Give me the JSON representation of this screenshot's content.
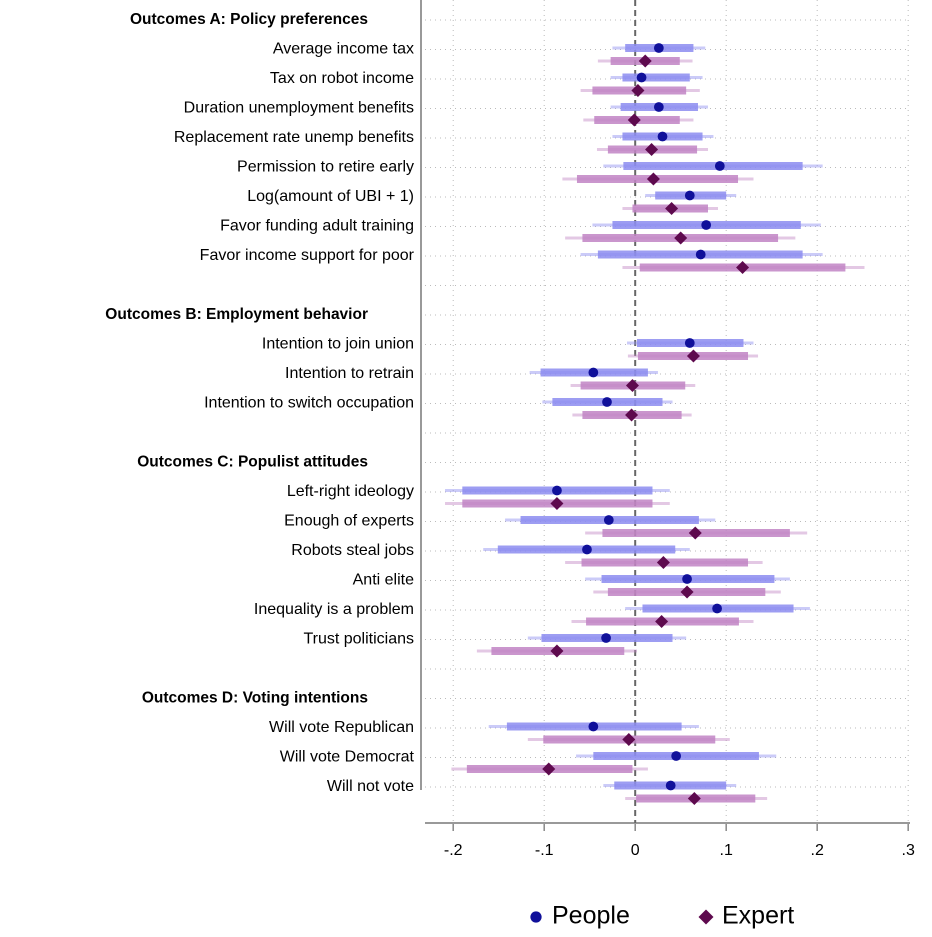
{
  "chart_data": {
    "type": "coefplot",
    "groups": [
      {
        "title": "Outcomes A: Policy preferences",
        "categories": [
          "Average income tax",
          "Tax on robot income",
          "Duration unemployment benefits",
          "Replacement rate unemp benefits",
          "Permission to retire early",
          "Log(amount of UBI + 1)",
          "Favor funding adult training",
          "Favor income support for poor"
        ]
      },
      {
        "title": "Outcomes B: Employment behavior",
        "categories": [
          "Intention to join union",
          "Intention to retrain",
          "Intention to switch occupation"
        ]
      },
      {
        "title": "Outcomes C: Populist attitudes",
        "categories": [
          "Left-right ideology",
          "Enough of experts",
          "Robots steal jobs",
          "Anti elite",
          "Inequality is a problem",
          "Trust politicians"
        ]
      },
      {
        "title": "Outcomes D: Voting intentions",
        "categories": [
          "Will vote Republican",
          "Will vote Democrat",
          "Will not vote"
        ]
      }
    ],
    "series": [
      {
        "name": "People",
        "color": "#10109a",
        "ci_color": "#8c8cf0",
        "marker": "circle",
        "values": [
          0.026,
          0.007,
          0.026,
          0.03,
          0.093,
          0.06,
          0.078,
          0.072,
          0.06,
          -0.046,
          -0.031,
          -0.086,
          -0.029,
          -0.053,
          0.057,
          0.09,
          -0.032,
          -0.046,
          0.045,
          0.039
        ],
        "ci90": [
          [
            -0.011,
            0.064
          ],
          [
            -0.014,
            0.06
          ],
          [
            -0.016,
            0.069
          ],
          [
            -0.014,
            0.074
          ],
          [
            -0.013,
            0.184
          ],
          [
            0.022,
            0.1
          ],
          [
            -0.025,
            0.182
          ],
          [
            -0.041,
            0.184
          ],
          [
            0.002,
            0.119
          ],
          [
            -0.104,
            0.014
          ],
          [
            -0.091,
            0.03
          ],
          [
            -0.19,
            0.019
          ],
          [
            -0.126,
            0.07
          ],
          [
            -0.151,
            0.044
          ],
          [
            -0.037,
            0.153
          ],
          [
            0.008,
            0.174
          ],
          [
            -0.103,
            0.041
          ],
          [
            -0.141,
            0.051
          ],
          [
            -0.046,
            0.136
          ],
          [
            -0.023,
            0.1
          ]
        ],
        "ci95": [
          [
            -0.025,
            0.077
          ],
          [
            -0.027,
            0.074
          ],
          [
            -0.027,
            0.08
          ],
          [
            -0.025,
            0.086
          ],
          [
            -0.035,
            0.206
          ],
          [
            0.011,
            0.111
          ],
          [
            -0.047,
            0.204
          ],
          [
            -0.06,
            0.206
          ],
          [
            -0.009,
            0.13
          ],
          [
            -0.116,
            0.025
          ],
          [
            -0.102,
            0.041
          ],
          [
            -0.209,
            0.038
          ],
          [
            -0.143,
            0.088
          ],
          [
            -0.167,
            0.06
          ],
          [
            -0.055,
            0.17
          ],
          [
            -0.011,
            0.192
          ],
          [
            -0.118,
            0.056
          ],
          [
            -0.161,
            0.07
          ],
          [
            -0.065,
            0.155
          ],
          [
            -0.035,
            0.111
          ]
        ]
      },
      {
        "name": "Expert",
        "color": "#5e0a4e",
        "ci_color": "#c184c4",
        "marker": "diamond",
        "values": [
          0.011,
          0.003,
          -0.001,
          0.018,
          0.02,
          0.04,
          0.05,
          0.118,
          0.064,
          -0.003,
          -0.004,
          -0.086,
          0.066,
          0.031,
          0.057,
          0.029,
          -0.086,
          -0.007,
          -0.095,
          0.065
        ],
        "ci90": [
          [
            -0.027,
            0.049
          ],
          [
            -0.047,
            0.056
          ],
          [
            -0.045,
            0.049
          ],
          [
            -0.03,
            0.068
          ],
          [
            -0.064,
            0.113
          ],
          [
            -0.003,
            0.08
          ],
          [
            -0.058,
            0.157
          ],
          [
            0.005,
            0.231
          ],
          [
            0.003,
            0.124
          ],
          [
            -0.06,
            0.055
          ],
          [
            -0.058,
            0.051
          ],
          [
            -0.19,
            0.019
          ],
          [
            -0.036,
            0.17
          ],
          [
            -0.059,
            0.124
          ],
          [
            -0.03,
            0.143
          ],
          [
            -0.054,
            0.114
          ],
          [
            -0.158,
            -0.012
          ],
          [
            -0.101,
            0.088
          ],
          [
            -0.185,
            -0.003
          ],
          [
            0.001,
            0.132
          ]
        ],
        "ci95": [
          [
            -0.041,
            0.063
          ],
          [
            -0.06,
            0.071
          ],
          [
            -0.057,
            0.064
          ],
          [
            -0.042,
            0.08
          ],
          [
            -0.08,
            0.13
          ],
          [
            -0.014,
            0.091
          ],
          [
            -0.077,
            0.176
          ],
          [
            -0.014,
            0.252
          ],
          [
            -0.008,
            0.135
          ],
          [
            -0.071,
            0.066
          ],
          [
            -0.069,
            0.062
          ],
          [
            -0.209,
            0.038
          ],
          [
            -0.055,
            0.189
          ],
          [
            -0.077,
            0.14
          ],
          [
            -0.046,
            0.16
          ],
          [
            -0.07,
            0.13
          ],
          [
            -0.174,
            0.002
          ],
          [
            -0.118,
            0.104
          ],
          [
            -0.202,
            0.014
          ],
          [
            -0.011,
            0.145
          ]
        ]
      }
    ],
    "xlim": [
      -0.231,
      0.302
    ],
    "xticks": [
      {
        "value": -0.2,
        "label": "-.2"
      },
      {
        "value": -0.1,
        "label": "-.1"
      },
      0,
      {
        "value": 0.1,
        "label": ".1"
      },
      {
        "value": 0.2,
        "label": ".2"
      },
      {
        "value": 0.3,
        "label": ".3"
      }
    ],
    "refline": 0,
    "grid": true
  }
}
